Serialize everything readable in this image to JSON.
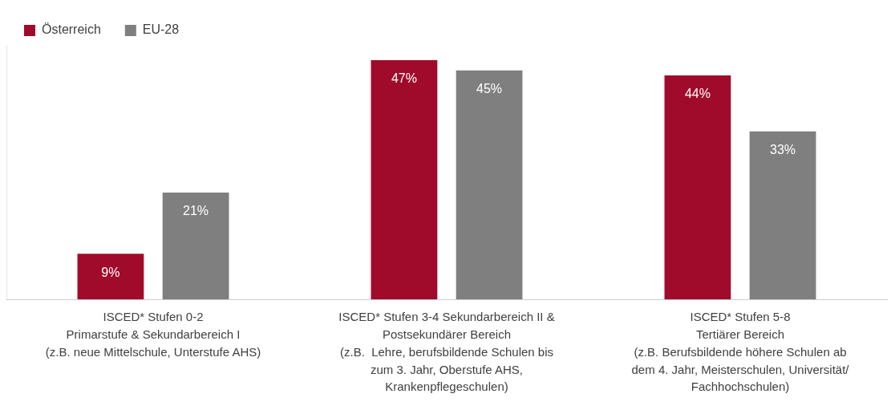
{
  "chart_data": {
    "type": "bar",
    "categories": [
      "ISCED* Stufen 0-2\nPrimarstufe & Sekundarbereich I\n(z.B. neue Mittelschule, Unterstufe AHS)",
      "ISCED* Stufen 3-4 Sekundarbereich II &\nPostsekundärer Bereich\n(z.B.  Lehre, berufsbildende Schulen bis\nzum 3. Jahr, Oberstufe AHS,\nKrankenpflegeschulen)",
      "ISCED* Stufen 5-8\nTertiärer Bereich\n(z.B. Berufsbildende höhere Schulen ab\ndem 4. Jahr, Meisterschulen, Universität/\nFachhochschulen)"
    ],
    "series": [
      {
        "name": "Österreich",
        "color": "#a00b2b",
        "values": [
          9,
          47,
          44
        ],
        "value_labels": [
          "9%",
          "47%",
          "44%"
        ]
      },
      {
        "name": "EU-28",
        "color": "#7f7f7f",
        "values": [
          21,
          45,
          33
        ],
        "value_labels": [
          "21%",
          "45%",
          "33%"
        ]
      }
    ],
    "relative": false,
    "legend": "top left",
    "grid": false
  }
}
